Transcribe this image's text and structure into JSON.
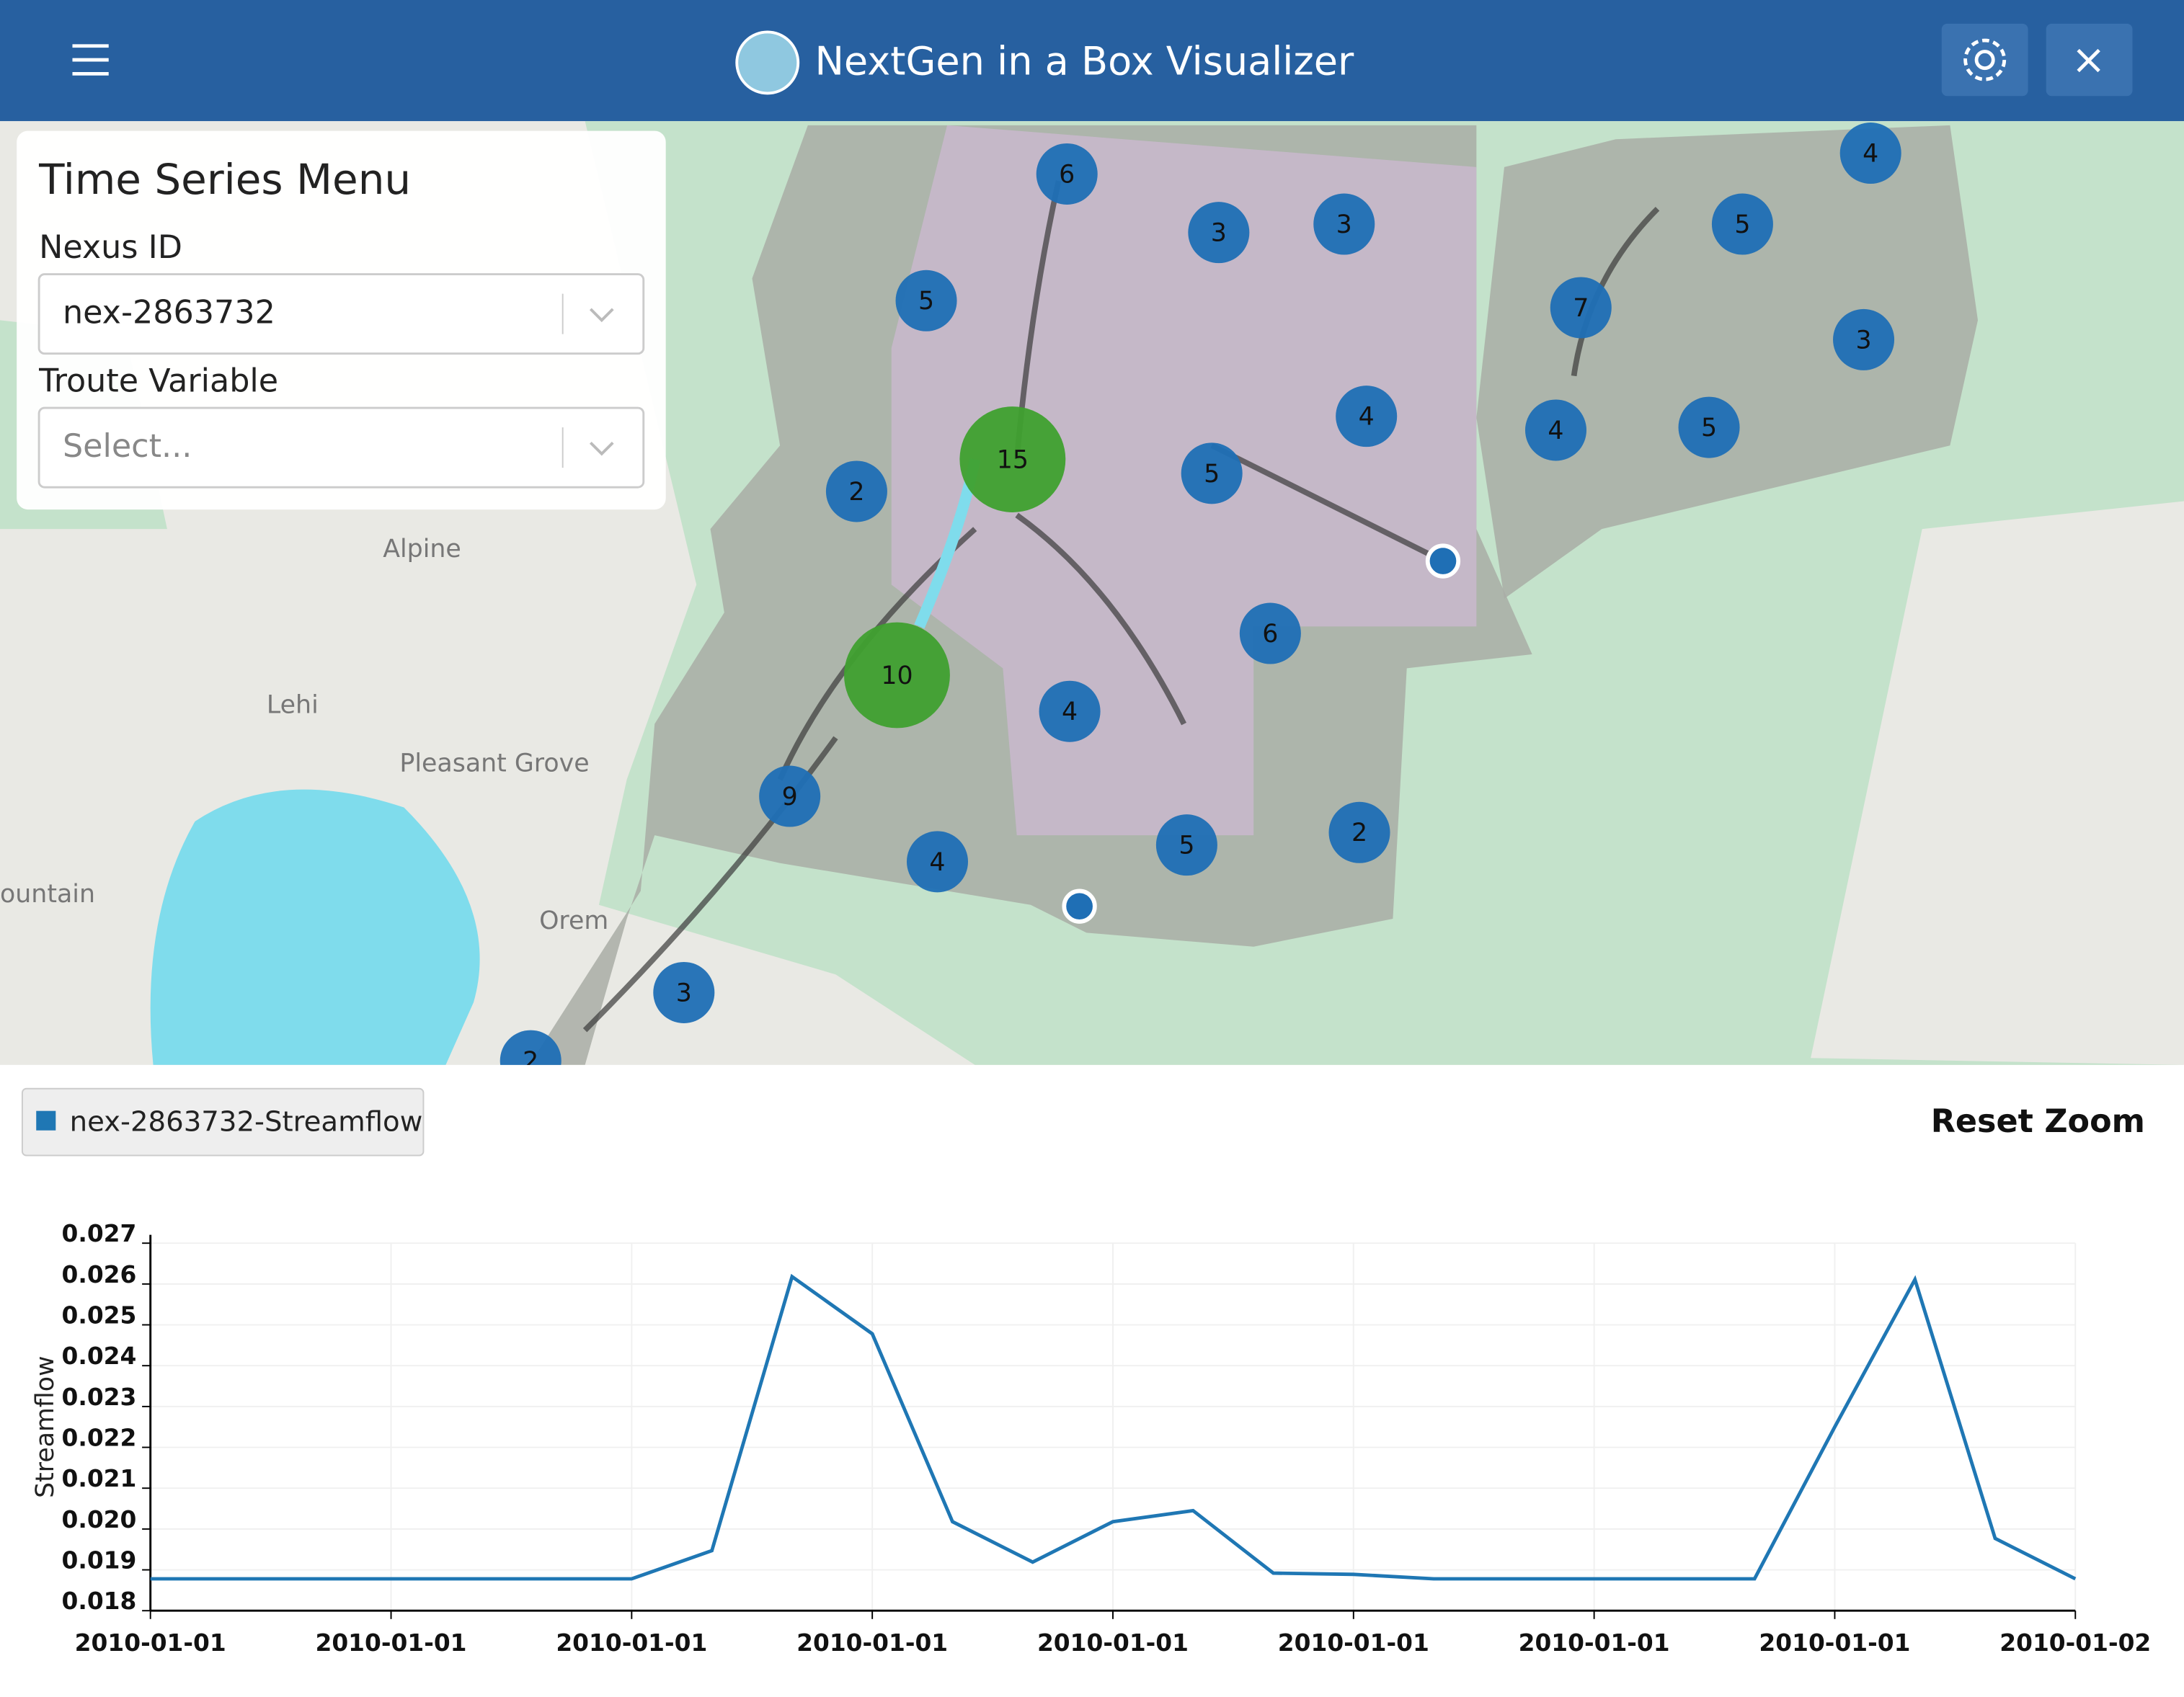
{
  "header": {
    "title": "NextGen in a Box Visualizer"
  },
  "menu": {
    "title": "Time Series Menu",
    "nexus_label": "Nexus ID",
    "nexus_value": "nex-2863732",
    "variable_label": "Troute Variable",
    "variable_placeholder": "Select..."
  },
  "map": {
    "clusters": [
      "6",
      "3",
      "3",
      "5",
      "4",
      "5",
      "7",
      "3",
      "4",
      "15",
      "5",
      "4",
      "5",
      "2",
      "6",
      "10",
      "4",
      "9",
      "2",
      "5",
      "4",
      "3",
      "2"
    ],
    "places": [
      "Alpine",
      "Lehi",
      "Pleasant Grove",
      "Orem",
      "ountain"
    ]
  },
  "reset_zoom": "Reset Zoom",
  "chart_data": {
    "type": "line",
    "ylabel": "Streamflow",
    "categories": [
      "2010-01-01",
      null,
      null,
      "2010-01-01",
      null,
      null,
      "2010-01-01",
      null,
      null,
      "2010-01-01",
      null,
      null,
      "2010-01-01",
      null,
      null,
      "2010-01-01",
      null,
      null,
      "2010-01-01",
      null,
      null,
      "2010-01-01",
      null,
      null,
      "2010-01-02"
    ],
    "series": [
      {
        "name": "nex-2863732-Streamflow",
        "color": "#1f77b4",
        "values": [
          0.01878,
          0.01878,
          0.01878,
          0.01878,
          0.01878,
          0.01878,
          0.01878,
          0.01947,
          0.02618,
          0.02478,
          0.02018,
          0.01919,
          0.02018,
          0.02045,
          0.01892,
          0.01889,
          0.01878,
          0.01878,
          0.01878,
          0.01878,
          0.01878,
          0.0225,
          0.02611,
          0.01977,
          0.01878
        ]
      }
    ],
    "ylim": [
      0.018,
      0.027
    ],
    "yticks": [
      0.018,
      0.019,
      {
        "value": 0.02,
        "label": "0.020"
      },
      0.021,
      0.022,
      0.023,
      0.024,
      0.025,
      0.026,
      0.027
    ],
    "grid": true
  }
}
